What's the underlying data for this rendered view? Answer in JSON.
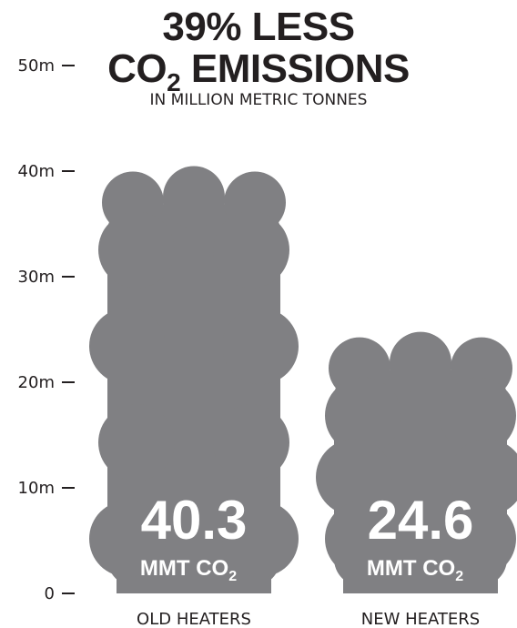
{
  "title_line1": "39% LESS",
  "title_line2_main": "CO",
  "title_line2_sub": "2",
  "title_line2_rest": " EMISSIONS",
  "subtitle": "IN MILLION METRIC TONNES",
  "colors": {
    "bar": "#808083",
    "text": "#231f20",
    "bar_text": "#ffffff"
  },
  "chart_data": {
    "type": "bar",
    "categories": [
      "OLD HEATERS",
      "NEW HEATERS"
    ],
    "values": [
      40.3,
      24.6
    ],
    "value_labels": [
      "40.3",
      "24.6"
    ],
    "unit_main": "MMT CO",
    "unit_sub": "2",
    "y_ticks": [
      "0",
      "10m",
      "20m",
      "30m",
      "40m",
      "50m"
    ],
    "y_tick_values": [
      0,
      10,
      20,
      30,
      40,
      50
    ],
    "ylim": [
      0,
      50
    ],
    "grid": false,
    "bar_style": "cloud"
  }
}
